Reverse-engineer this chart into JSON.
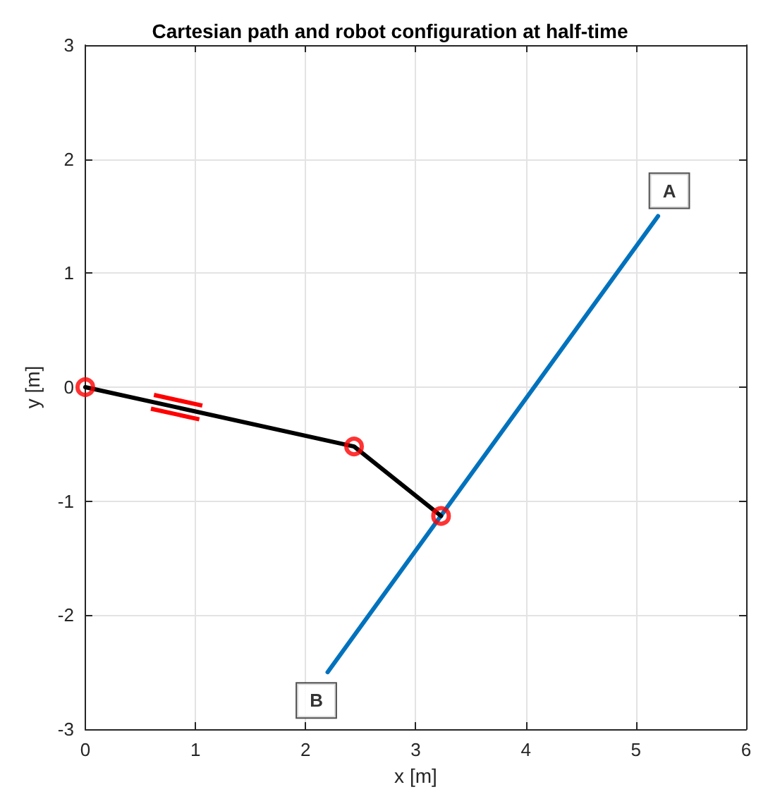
{
  "chart_data": {
    "type": "line",
    "title": "Cartesian path and robot configuration at half-time",
    "xlabel": "x [m]",
    "ylabel": "y [m]",
    "xlim": [
      0,
      6
    ],
    "xticks": [
      0,
      1,
      2,
      3,
      4,
      5,
      6
    ],
    "ylim": [
      -3,
      3
    ],
    "yticks": [
      -3,
      -2,
      -1,
      0,
      1,
      2,
      3
    ],
    "grid": true,
    "line_style": "solid",
    "series": [
      {
        "type": "line",
        "color": "#0072bd",
        "x": [
          2.2,
          5.2
        ],
        "values": [
          -2.5,
          1.5
        ],
        "marker": "none"
      },
      {
        "type": "line",
        "color": "#000000",
        "x": [
          0,
          2.44,
          3.23
        ],
        "values": [
          0,
          -0.52,
          -1.13
        ],
        "marker": "none"
      },
      {
        "type": "scatter",
        "color": "#ff0000",
        "x": [
          0,
          2.44,
          3.23
        ],
        "values": [
          0,
          -0.52,
          -1.13
        ],
        "marker": "circle"
      }
    ],
    "annotations": [
      {
        "text": "A",
        "x": 5.2,
        "y": 1.5
      },
      {
        "text": "B",
        "x": 2.2,
        "y": -2.5
      }
    ]
  }
}
